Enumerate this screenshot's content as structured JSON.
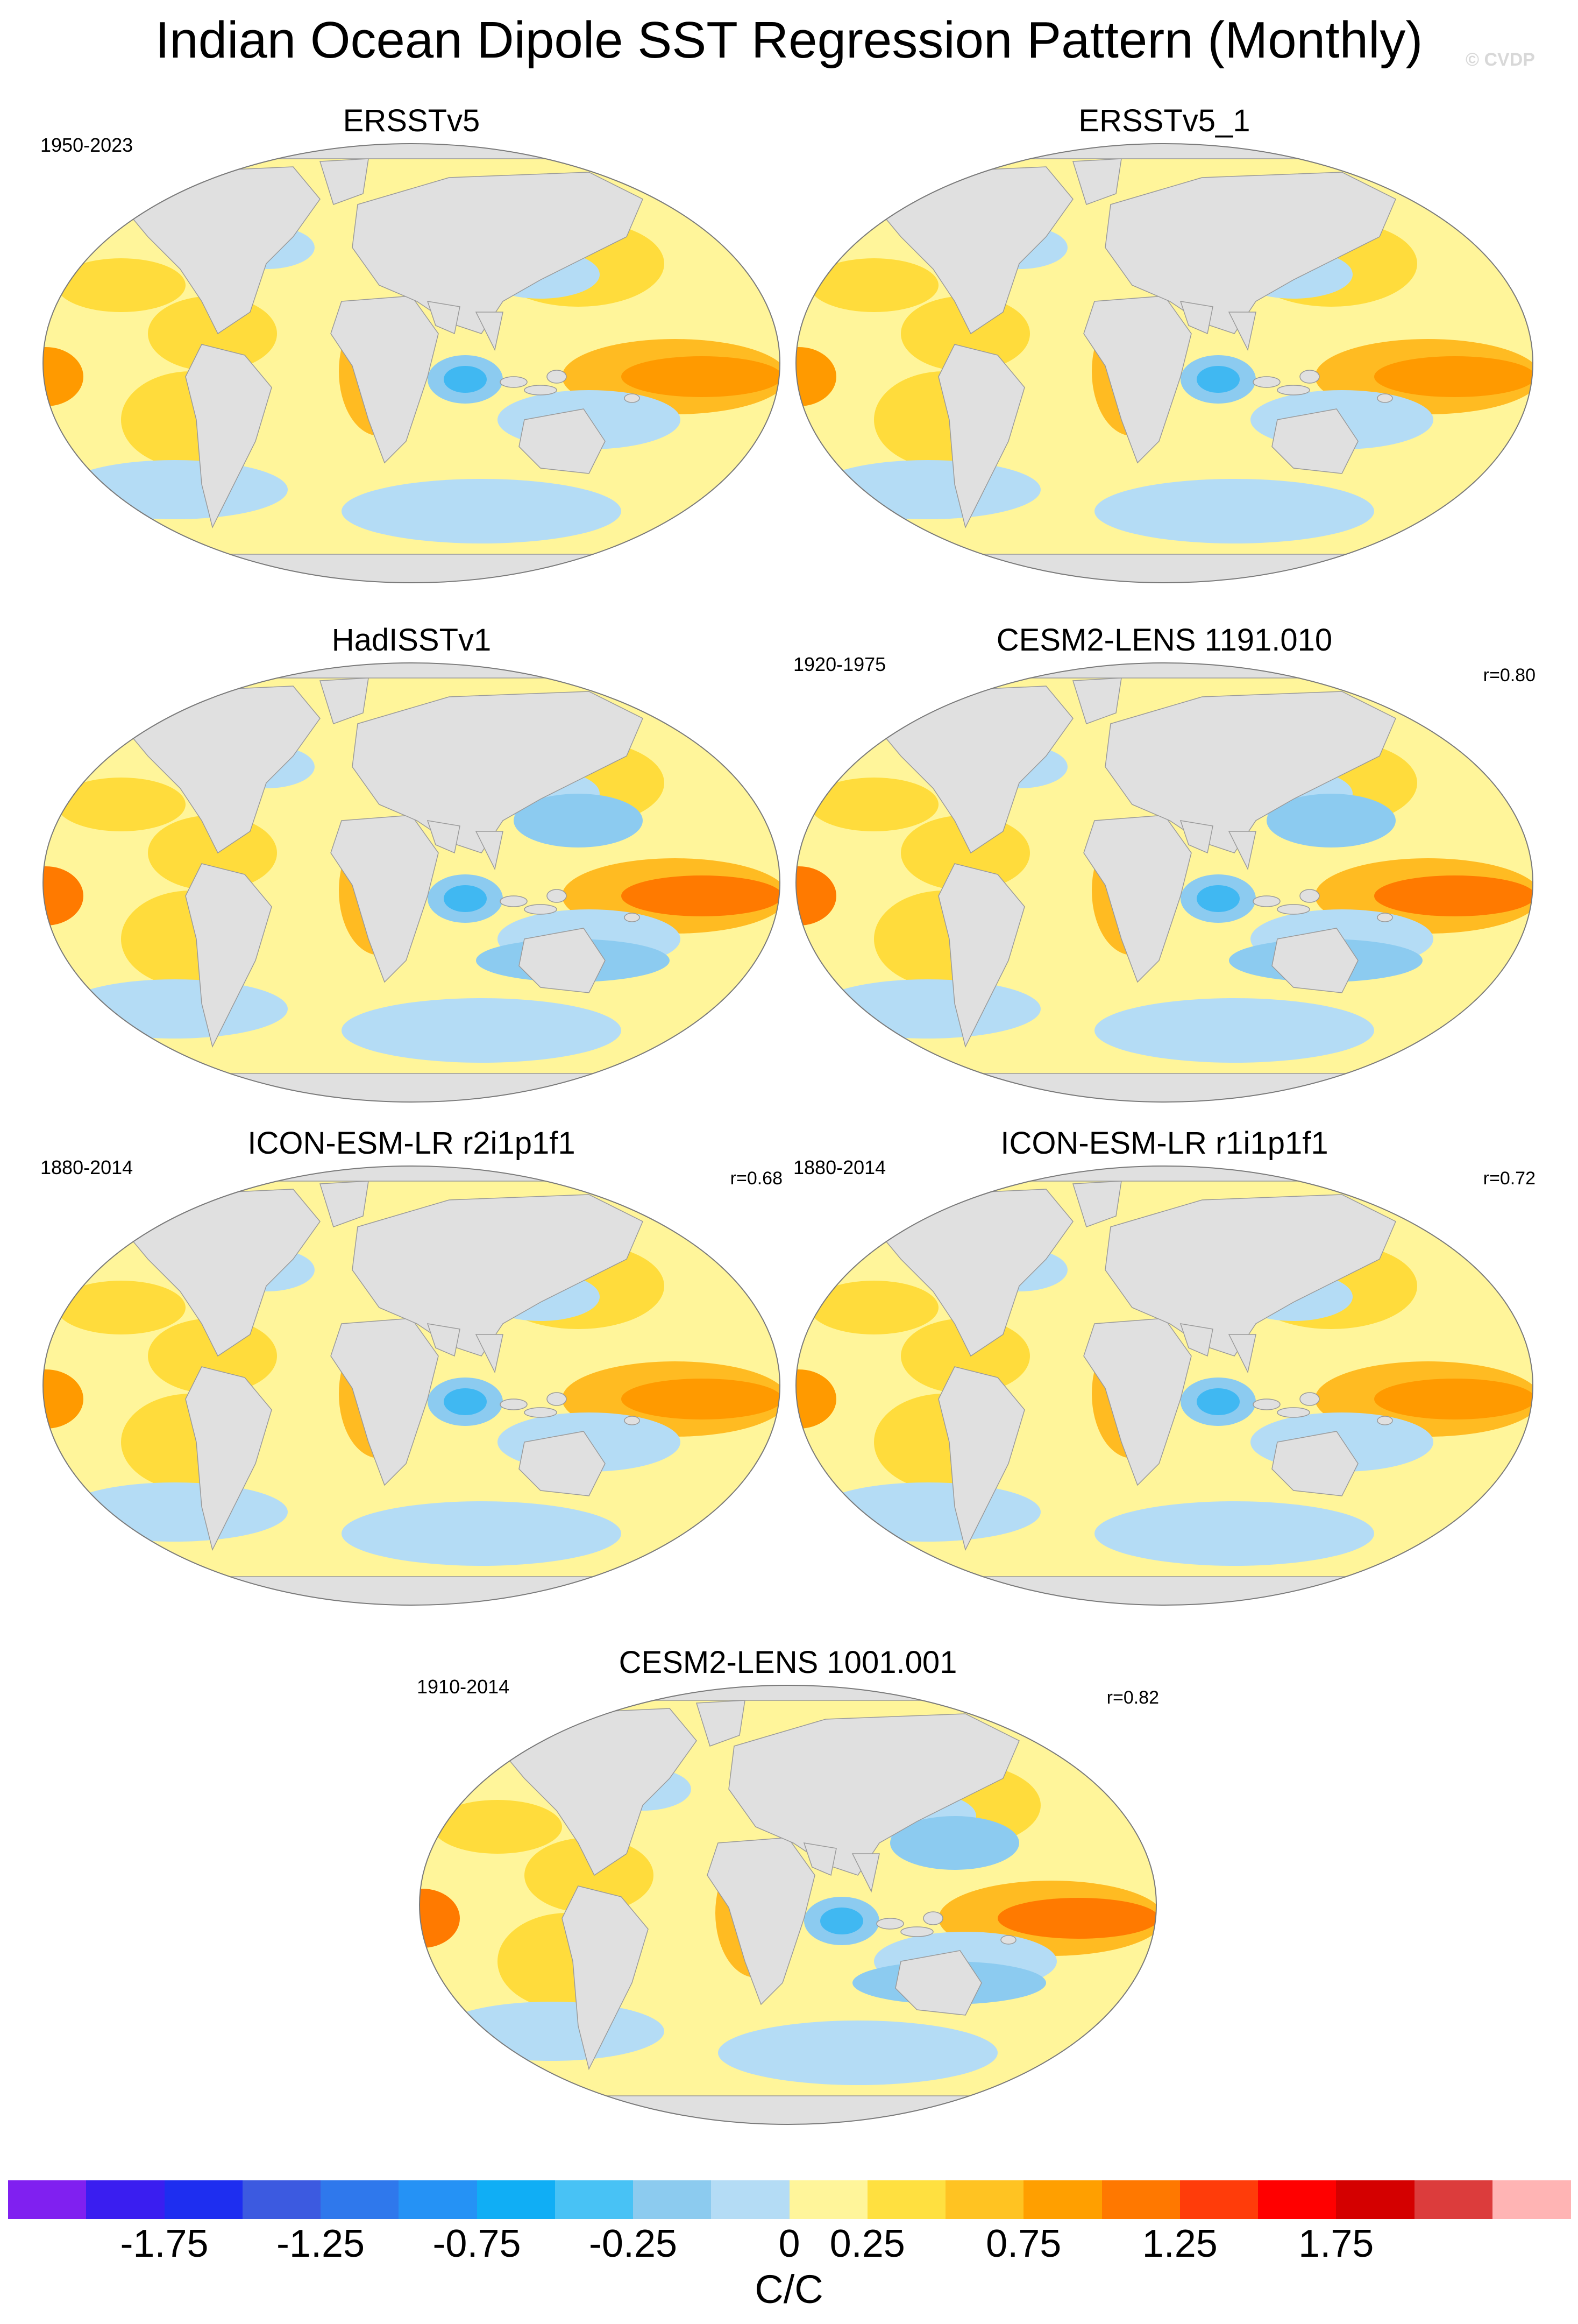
{
  "title": "Indian Ocean Dipole SST Regression Pattern (Monthly)",
  "watermark": "© CVDP",
  "colors": {
    "ocean_base": "#fff59a",
    "land": "#e0e0e0",
    "warm_1": "#ffdc3c",
    "warm_2": "#ffbb22",
    "warm_3": "#ff9a00",
    "warm_4": "#ff7a00",
    "hot": "#ff3300",
    "cool_1": "#b4dcf5",
    "cool_2": "#8ccbf0",
    "cool_3": "#40b8f2",
    "cool_4": "#2a8cf0"
  },
  "panels": [
    {
      "title": "ERSSTv5",
      "years": "1950-2023",
      "corr": "",
      "intensity": "moderate"
    },
    {
      "title": "ERSSTv5_1",
      "years": "",
      "corr": "",
      "intensity": "moderate"
    },
    {
      "title": "HadISSTv1",
      "years": "",
      "corr": "",
      "intensity": "strong"
    },
    {
      "title": "CESM2-LENS 1191.010",
      "years": "1920-1975",
      "corr": "r=0.80",
      "intensity": "strong"
    },
    {
      "title": "ICON-ESM-LR r2i1p1f1",
      "years": "1880-2014",
      "corr": "r=0.68",
      "intensity": "moderate"
    },
    {
      "title": "ICON-ESM-LR r1i1p1f1",
      "years": "1880-2014",
      "corr": "r=0.72",
      "intensity": "moderate"
    },
    {
      "title": "CESM2-LENS 1001.001",
      "years": "1910-2014",
      "corr": "r=0.82",
      "intensity": "strong"
    }
  ],
  "colorbar": {
    "colors": [
      "#8020f0",
      "#3a1ef0",
      "#1e2ef0",
      "#3c5ae0",
      "#2f78ec",
      "#2592f5",
      "#10aef5",
      "#48c2f5",
      "#8ccbef",
      "#b4dcf5",
      "#fff59a",
      "#ffe040",
      "#ffc322",
      "#ff9f00",
      "#ff7800",
      "#ff3c0a",
      "#ff0000",
      "#d40000",
      "#dc3c3c",
      "#ffb4b4"
    ],
    "ticks": [
      "-1.75",
      "-1.25",
      "-0.75",
      "-0.25",
      "0",
      "0.25",
      "0.75",
      "1.25",
      "1.75"
    ],
    "units": "C/C"
  }
}
